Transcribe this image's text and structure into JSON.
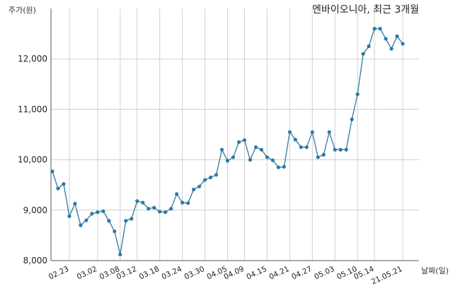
{
  "chart_data": {
    "type": "line",
    "title": "엔바이오니아, 최근 3개월",
    "ylabel": "주가(원)",
    "xlabel": "날짜(일)",
    "ylim": [
      8000,
      13000
    ],
    "yticks": [
      8000,
      9000,
      10000,
      11000,
      12000
    ],
    "ytick_labels": [
      "8,000",
      "9,000",
      "10,000",
      "11,000",
      "12,000"
    ],
    "grid": true,
    "x_tick_labels": [
      "02.23",
      "03.02",
      "03.08",
      "03.12",
      "03.18",
      "03.24",
      "03.30",
      "04.05",
      "04.09",
      "04.15",
      "04.21",
      "04.27",
      "05.03",
      "05.10",
      "05.14",
      "21.05.21"
    ],
    "x_tick_indices": [
      3,
      8,
      12,
      15,
      19,
      23,
      27,
      31,
      34,
      38,
      42,
      46,
      50,
      54,
      57,
      62
    ],
    "values": [
      9770,
      9430,
      9520,
      8880,
      9130,
      8700,
      8800,
      8930,
      8960,
      8980,
      8790,
      8580,
      8120,
      8790,
      8830,
      9180,
      9150,
      9030,
      9050,
      8970,
      8960,
      9030,
      9320,
      9150,
      9140,
      9410,
      9470,
      9600,
      9650,
      9700,
      10200,
      9980,
      10050,
      10350,
      10390,
      10000,
      10250,
      10200,
      10050,
      9990,
      9850,
      9860,
      10550,
      10400,
      10250,
      10250,
      10550,
      10050,
      10100,
      10550,
      10200,
      10200,
      10200,
      10800,
      11300,
      12100,
      12250,
      12600,
      12600,
      12400,
      12200,
      12450,
      12300
    ]
  }
}
